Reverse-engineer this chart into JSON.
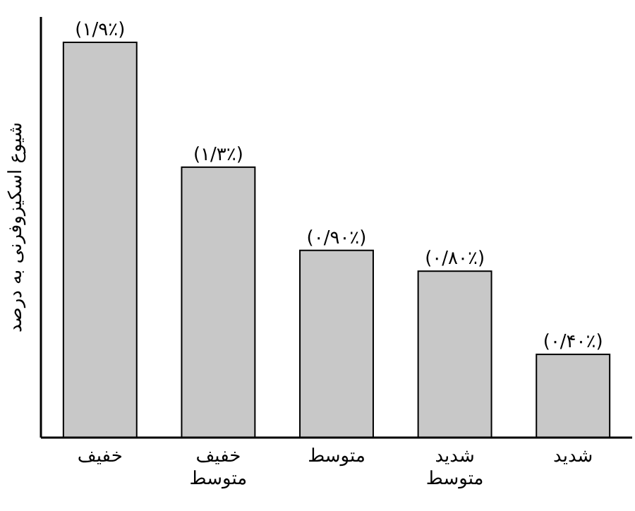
{
  "chart_data": {
    "type": "bar",
    "ylabel": "شیوع اسکیزوفرنی به درصد",
    "categories": [
      "خفیف",
      "خفیف متوسط",
      "متوسط",
      "شدید متوسط",
      "شدید"
    ],
    "values": [
      1.9,
      1.3,
      0.9,
      0.8,
      0.4
    ],
    "value_labels": [
      "(۱/۹٪)",
      "(۱/۳٪)",
      "(۰/۹۰٪)",
      "(۰/۸۰٪)",
      "(۰/۴۰٪)"
    ],
    "color": "#c8c8c8"
  }
}
